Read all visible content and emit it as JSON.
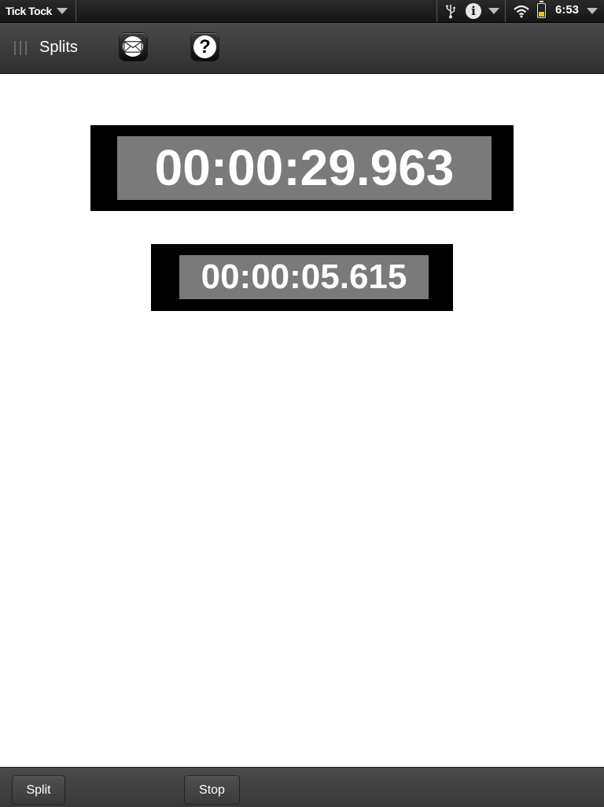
{
  "status_bar": {
    "app_name": "Tick Tock",
    "time": "6:53",
    "icons": [
      "usb-icon",
      "info-icon",
      "wifi-icon",
      "battery-icon"
    ]
  },
  "header": {
    "title": "Splits",
    "buttons": [
      "mail-icon",
      "help-icon"
    ],
    "help_glyph": "?"
  },
  "timers": {
    "main": "00:00:29.963",
    "split": "00:00:05.615"
  },
  "command_bar": {
    "split_label": "Split",
    "stop_label": "Stop"
  },
  "colors": {
    "timer_frame": "#000000",
    "timer_face": "#7a7a7a",
    "timer_text": "#ffffff",
    "battery_fill": "#f0c020"
  }
}
